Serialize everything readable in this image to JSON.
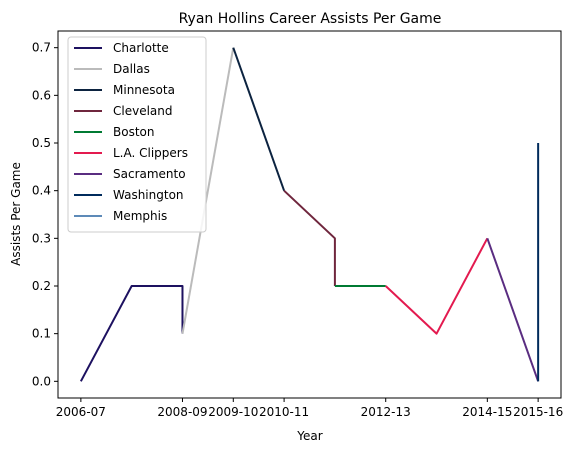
{
  "chart_data": {
    "type": "line",
    "title": "Ryan Hollins Career Assists Per Game",
    "xlabel": "Year",
    "ylabel": "Assists Per Game",
    "x_ticks": [
      "2006-07",
      "2008-09",
      "2009-10",
      "2010-11",
      "2012-13",
      "2014-15",
      "2015-16"
    ],
    "y_ticks": [
      "0.0",
      "0.1",
      "0.2",
      "0.3",
      "0.4",
      "0.5",
      "0.6",
      "0.7"
    ],
    "ylim": [
      -0.035,
      0.735
    ],
    "grid": false,
    "legend_position": "upper-left",
    "series": [
      {
        "name": "Charlotte",
        "color": "#1d1160",
        "points": [
          [
            "2006-07",
            0.0
          ],
          [
            "2007-08",
            0.2
          ],
          [
            "2008-09",
            0.2
          ],
          [
            "2008-09",
            0.1
          ]
        ]
      },
      {
        "name": "Dallas",
        "color": "#bbbbbb",
        "points": [
          [
            "2008-09",
            0.1
          ],
          [
            "2009-10",
            0.7
          ]
        ]
      },
      {
        "name": "Minnesota",
        "color": "#0c2340",
        "points": [
          [
            "2009-10",
            0.7
          ],
          [
            "2010-11",
            0.4
          ]
        ]
      },
      {
        "name": "Cleveland",
        "color": "#6f263d",
        "points": [
          [
            "2010-11",
            0.4
          ],
          [
            "2011-12",
            0.3
          ],
          [
            "2011-12",
            0.2
          ]
        ]
      },
      {
        "name": "Boston",
        "color": "#007a33",
        "points": [
          [
            "2011-12",
            0.2
          ],
          [
            "2012-13",
            0.2
          ]
        ]
      },
      {
        "name": "L.A. Clippers",
        "color": "#e31a4f",
        "points": [
          [
            "2012-13",
            0.2
          ],
          [
            "2013-14",
            0.1
          ],
          [
            "2014-15",
            0.3
          ]
        ]
      },
      {
        "name": "Sacramento",
        "color": "#5a2d81",
        "points": [
          [
            "2014-15",
            0.3
          ],
          [
            "2015-16",
            0.0
          ]
        ]
      },
      {
        "name": "Washington",
        "color": "#002b5c",
        "points": [
          [
            "2015-16",
            0.0
          ],
          [
            "2015-16",
            0.5
          ]
        ]
      },
      {
        "name": "Memphis",
        "color": "#5d8ab8",
        "points": []
      }
    ],
    "x_order": [
      "2006-07",
      "2007-08",
      "2008-09",
      "2009-10",
      "2010-11",
      "2011-12",
      "2012-13",
      "2013-14",
      "2014-15",
      "2015-16"
    ]
  }
}
